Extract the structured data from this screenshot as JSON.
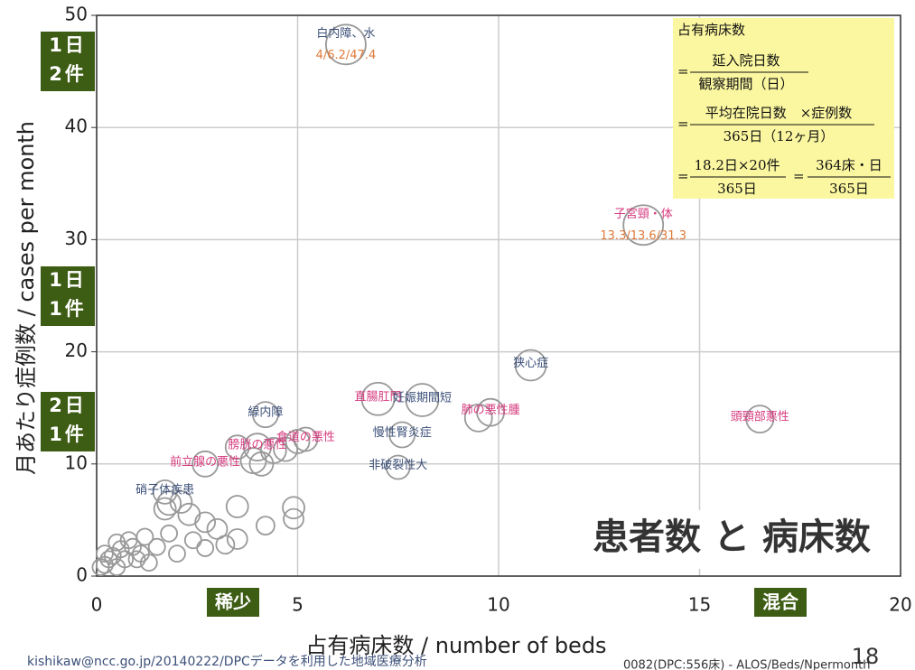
{
  "chart_data": {
    "type": "scatter",
    "title": "患者数 と 病床数",
    "x_label": "占有病床数 / number of beds",
    "y_label": "月あたり症例数 / cases per month",
    "xlim": [
      0,
      20
    ],
    "xticks": [
      0,
      5,
      10,
      15,
      20
    ],
    "ylim": [
      0,
      50
    ],
    "yticks": [
      0,
      10,
      20,
      30,
      40,
      50
    ],
    "grid": true,
    "color": "#999999",
    "x": [
      6.2,
      13.6,
      10.8,
      16.5,
      7,
      8.1,
      9.8,
      7.6,
      7.5,
      4.2,
      2.7,
      1.7,
      5.2,
      4,
      9.5,
      4.4,
      3.9,
      4.1,
      4.7,
      5,
      3.5,
      1.8,
      1.7,
      2.1,
      2.3,
      3.5,
      4.2,
      4.9,
      4.9,
      2.7,
      3,
      3.5,
      3.2,
      2.7,
      2.4,
      2,
      1.8,
      1.5,
      1.2,
      1.1,
      0.9,
      0.7,
      0.5,
      0.3,
      0.2,
      0.6,
      0.4,
      0.2,
      0.8,
      1,
      0.5,
      1.3,
      0.1
    ],
    "values": [
      47.4,
      31.3,
      18.8,
      14,
      15.8,
      15.7,
      14.6,
      12.6,
      9.7,
      14.4,
      10,
      7.5,
      12.2,
      11.5,
      14.1,
      11.2,
      10.3,
      10,
      11.3,
      12,
      11.5,
      6.5,
      6,
      6.6,
      5.5,
      6.2,
      4.5,
      6.1,
      5.1,
      4.8,
      4.2,
      3.3,
      2.8,
      2.5,
      3.2,
      2,
      3.8,
      2.6,
      3.5,
      2,
      2.6,
      1.5,
      3,
      1.5,
      1,
      2.4,
      1.8,
      2,
      3.2,
      1.5,
      0.8,
      1.2,
      0.8
    ],
    "sizes": [
      22,
      22,
      17,
      15,
      18,
      18,
      15,
      14,
      13,
      14,
      14,
      13,
      13,
      15,
      15,
      14,
      14,
      13,
      13,
      13,
      13,
      13,
      12,
      12,
      12,
      12,
      10,
      12,
      11,
      11,
      11,
      11,
      10,
      9,
      9,
      9,
      9,
      9,
      9,
      9,
      9,
      9,
      9,
      9,
      9,
      9,
      9,
      9,
      9,
      9,
      9,
      9,
      9
    ],
    "labels": [
      "白内障、水",
      "子宮頸・体",
      "狭心症",
      "頭頸部悪性",
      "直腸肛門",
      "妊娠期間短",
      "肺の悪性腫",
      "慢性腎炎症",
      "非破裂性大",
      "緑内障",
      "前立腺の悪性",
      "硝子体疾患",
      "食道の悪性",
      "膀胱の悪性",
      null,
      null,
      null,
      null,
      null,
      null,
      null,
      null,
      null,
      null,
      null,
      null,
      null,
      null,
      null,
      null,
      null,
      null,
      null,
      null,
      null,
      null,
      null,
      null,
      null,
      null,
      null,
      null,
      null,
      null,
      null,
      null,
      null,
      null,
      null,
      null,
      null,
      null,
      null
    ],
    "label_colors": [
      "#3b4f78",
      "#d63a7e",
      "#3b4f78",
      "#d63a7e",
      "#d63a7e",
      "#3b4f78",
      "#d63a7e",
      "#3b4f78",
      "#3b4f78",
      "#3b4f78",
      "#d63a7e",
      "#3b4f78",
      "#d63a7e",
      "#d63a7e",
      null,
      null,
      null,
      null,
      null,
      null,
      null,
      null,
      null,
      null,
      null,
      null,
      null,
      null,
      null,
      null,
      null,
      null,
      null,
      null,
      null,
      null,
      null,
      null,
      null,
      null,
      null,
      null,
      null,
      null,
      null,
      null,
      null,
      null,
      null,
      null,
      null,
      null,
      null
    ],
    "sublabels": [
      "4/6.2/47.4",
      "13.3/13.6/31.3",
      null,
      null,
      null,
      null,
      null,
      null,
      null,
      null,
      null,
      null,
      null,
      null,
      null,
      null,
      null,
      null,
      null,
      null,
      null,
      null,
      null,
      null,
      null,
      null,
      null,
      null,
      null,
      null,
      null,
      null,
      null,
      null,
      null,
      null,
      null,
      null,
      null,
      null,
      null,
      null,
      null,
      null,
      null,
      null,
      null,
      null,
      null,
      null,
      null,
      null,
      null
    ],
    "y_badges": [
      [
        "1日",
        "2件"
      ],
      [
        "1日",
        "1件"
      ],
      [
        "2日",
        "1件"
      ]
    ],
    "x_badges": [
      "稀少",
      "混合"
    ],
    "formula": {
      "title": "占有病床数",
      "eq": "=",
      "f1": [
        "延入院日数",
        "観察期間（日）"
      ],
      "f2": [
        "平均在院日数　×症例数",
        "365日（12ヶ月）"
      ],
      "f3": [
        "18.2日×20件",
        "365日"
      ],
      "f4": [
        "364床・日",
        "365日"
      ]
    }
  },
  "footer": {
    "left": "kishikaw@ncc.go.jp/20140222/DPCデータを利用した地域医療分析",
    "right": "0082(DPC:556床) - ALOS/Beds/Npermonth",
    "page": "18"
  }
}
